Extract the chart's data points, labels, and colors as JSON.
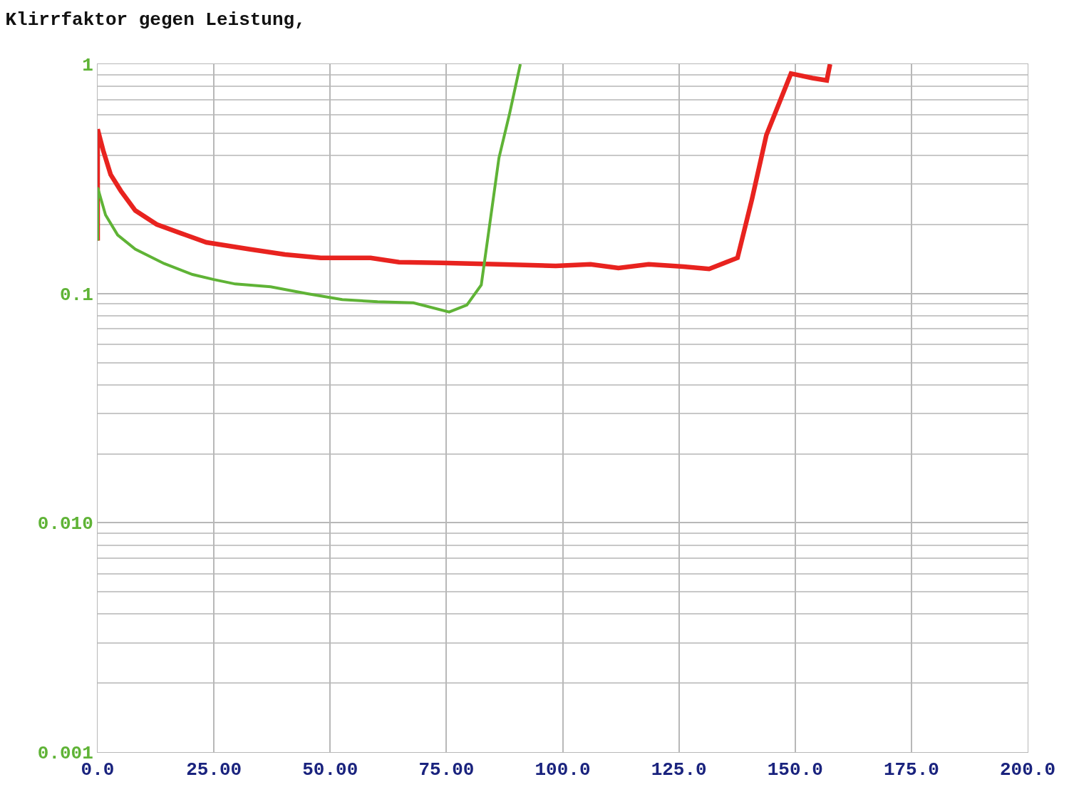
{
  "chart_data": {
    "type": "line",
    "title": "Klirrfaktor gegen Leistung,",
    "series": [
      {
        "color": "#e8231f",
        "x": [
          0,
          0,
          1.2,
          2.8,
          5,
          8.1,
          12.7,
          18.9,
          23.4,
          32.6,
          40.3,
          48,
          58.7,
          64.8,
          74,
          86.3,
          98.5,
          106,
          112,
          118.5,
          126,
          131.5,
          137.6,
          140.7,
          143.8,
          149.1,
          153.7,
          156.8,
          157.5
        ],
        "values": [
          0.17,
          0.52,
          0.42,
          0.33,
          0.28,
          0.23,
          0.2,
          0.18,
          0.167,
          0.156,
          0.148,
          0.143,
          0.143,
          0.137,
          0.136,
          0.134,
          0.132,
          0.134,
          0.129,
          0.134,
          0.131,
          0.128,
          0.143,
          0.257,
          0.49,
          0.91,
          0.87,
          0.85,
          1.0
        ]
      },
      {
        "color": "#5fb336",
        "x": [
          0,
          0,
          1.7,
          4.3,
          8.1,
          14.3,
          20.4,
          25,
          29.6,
          37.2,
          44.9,
          52.6,
          60.2,
          67.9,
          75.6,
          79.4,
          82.5,
          84,
          86.3,
          88.6,
          90.9
        ],
        "values": [
          0.17,
          0.29,
          0.22,
          0.18,
          0.156,
          0.135,
          0.121,
          0.115,
          0.11,
          0.107,
          0.1,
          0.094,
          0.092,
          0.091,
          0.083,
          0.089,
          0.109,
          0.18,
          0.39,
          0.61,
          1.0
        ]
      }
    ],
    "xlim": [
      0,
      200
    ],
    "xticks": [
      {
        "value": 0,
        "label": "0.0"
      },
      {
        "value": 25,
        "label": "25.00"
      },
      {
        "value": 50,
        "label": "50.00"
      },
      {
        "value": 75,
        "label": "75.00"
      },
      {
        "value": 100,
        "label": "100.0"
      },
      {
        "value": 125,
        "label": "125.0"
      },
      {
        "value": 150,
        "label": "150.0"
      },
      {
        "value": 175,
        "label": "175.0"
      },
      {
        "value": 200,
        "label": "200.0"
      }
    ],
    "ylim": [
      0.001,
      1
    ],
    "yticks": [
      {
        "value": 0.001,
        "label": "0.001"
      },
      {
        "value": 0.01,
        "label": "0.010"
      },
      0.1,
      1
    ],
    "log": "y",
    "grid": true,
    "line_style": "solid",
    "marker": "none"
  }
}
